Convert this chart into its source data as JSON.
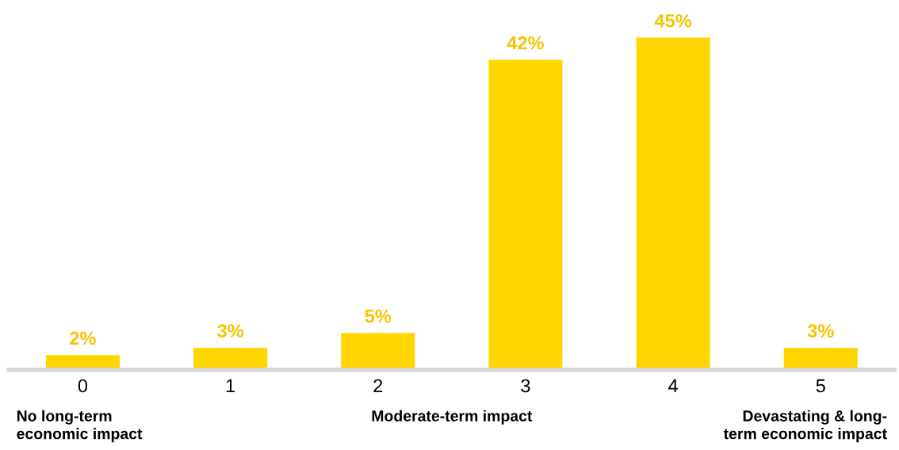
{
  "chart_data": {
    "type": "bar",
    "categories": [
      "0",
      "1",
      "2",
      "3",
      "4",
      "5"
    ],
    "values": [
      2,
      3,
      5,
      42,
      45,
      3
    ],
    "color": "#ffd600",
    "value_labels": [
      "2%",
      "3%",
      "5%",
      "42%",
      "45%",
      "3%"
    ],
    "annotations": [
      "No long-term\neconomic impact",
      "Moderate-term impact",
      "Devastating & long-\nterm economic impact"
    ],
    "grid": false,
    "legend": false
  }
}
